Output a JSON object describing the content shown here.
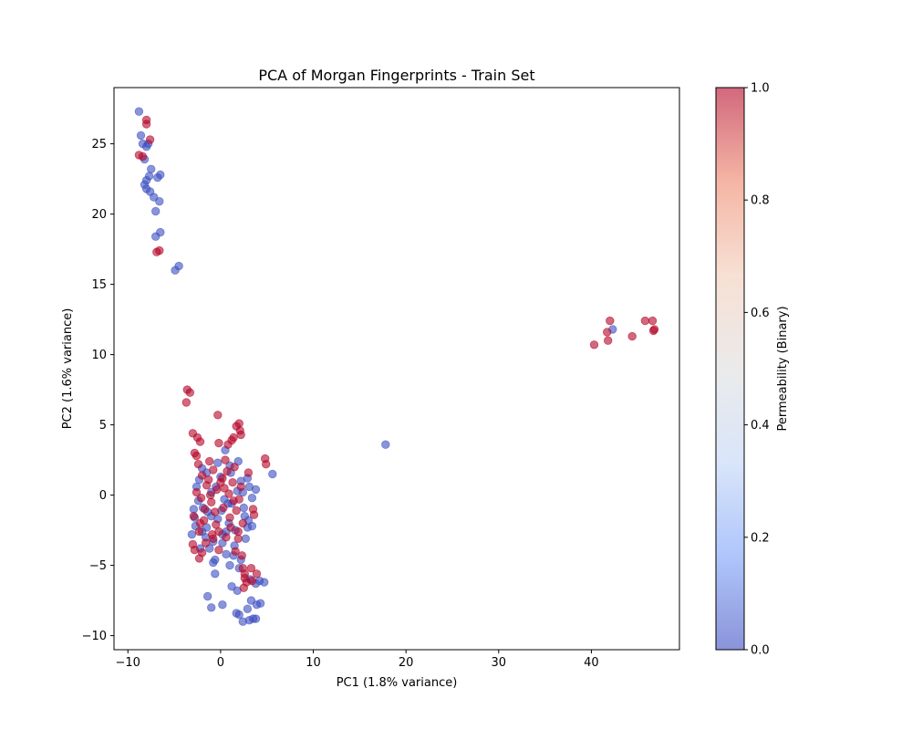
{
  "chart_data": {
    "type": "scatter",
    "title": "PCA of Morgan Fingerprints - Train Set",
    "xlabel": "PC1 (1.8% variance)",
    "ylabel": "PC2 (1.6% variance)",
    "xlim": [
      -11.5,
      49.5
    ],
    "ylim": [
      -11,
      29
    ],
    "xticks": [
      -10,
      0,
      10,
      20,
      30,
      40
    ],
    "yticks": [
      -10,
      -5,
      0,
      5,
      10,
      15,
      20,
      25
    ],
    "grid": false,
    "colormap": "coolwarm",
    "marker_alpha": 0.6,
    "colorbar": {
      "label": "Permeability (Binary)",
      "range": [
        0.0,
        1.0
      ],
      "ticks": [
        "0.0",
        "0.2",
        "0.4",
        "0.6",
        "0.8",
        "1.0"
      ],
      "colors": [
        "#3b4cc0",
        "#7b9ff9",
        "#c0d4f5",
        "#dddddd",
        "#f2cbb7",
        "#ee8468",
        "#b40426"
      ]
    },
    "point_colors": {
      "0": "#3b4cc0",
      "1": "#b40426"
    },
    "series": [
      {
        "value": 0,
        "points": [
          [
            -8.8,
            27.3
          ],
          [
            -8.6,
            25.6
          ],
          [
            -8.4,
            25.0
          ],
          [
            -8.0,
            24.8
          ],
          [
            -7.8,
            25.0
          ],
          [
            -8.2,
            23.9
          ],
          [
            -7.5,
            23.2
          ],
          [
            -8.0,
            22.4
          ],
          [
            -8.2,
            22.1
          ],
          [
            -7.7,
            22.7
          ],
          [
            -6.5,
            22.8
          ],
          [
            -6.8,
            22.6
          ],
          [
            -8.0,
            21.8
          ],
          [
            -7.6,
            21.6
          ],
          [
            -7.2,
            21.2
          ],
          [
            -6.6,
            20.9
          ],
          [
            -7.0,
            20.2
          ],
          [
            -6.5,
            18.7
          ],
          [
            -7.0,
            18.4
          ],
          [
            -4.5,
            16.3
          ],
          [
            -4.9,
            16.0
          ],
          [
            42.3,
            11.8
          ],
          [
            17.8,
            3.6
          ],
          [
            5.6,
            1.5
          ],
          [
            3.8,
            0.4
          ],
          [
            2.9,
            1.2
          ],
          [
            3.1,
            0.6
          ],
          [
            2.4,
            0.2
          ],
          [
            0.5,
            3.2
          ],
          [
            -2.0,
            1.9
          ],
          [
            -1.5,
            1.6
          ],
          [
            0.0,
            1.3
          ],
          [
            1.0,
            2.1
          ],
          [
            2.2,
            1.0
          ],
          [
            1.8,
            0.3
          ],
          [
            -2.6,
            0.6
          ],
          [
            -1.0,
            0.2
          ],
          [
            0.4,
            -0.3
          ],
          [
            1.2,
            -0.6
          ],
          [
            2.5,
            -0.9
          ],
          [
            3.0,
            -1.8
          ],
          [
            3.4,
            -2.2
          ],
          [
            2.7,
            -3.1
          ],
          [
            1.6,
            -2.5
          ],
          [
            0.2,
            -2.8
          ],
          [
            -0.8,
            -3.3
          ],
          [
            -2.0,
            -2.6
          ],
          [
            -2.9,
            -1.0
          ],
          [
            -2.4,
            -0.4
          ],
          [
            -1.4,
            -1.2
          ],
          [
            -0.3,
            -1.7
          ],
          [
            0.9,
            -2.0
          ],
          [
            1.5,
            -3.6
          ],
          [
            0.6,
            -4.2
          ],
          [
            -0.6,
            -4.6
          ],
          [
            -1.6,
            -3.0
          ],
          [
            -2.7,
            -2.2
          ],
          [
            -3.1,
            -2.8
          ],
          [
            -2.2,
            -3.8
          ],
          [
            -1.2,
            -3.8
          ],
          [
            0.2,
            -3.4
          ],
          [
            1.4,
            -4.3
          ],
          [
            2.2,
            -4.6
          ],
          [
            2.0,
            -5.2
          ],
          [
            1.0,
            -5.0
          ],
          [
            -0.8,
            -4.8
          ],
          [
            -0.6,
            -5.6
          ],
          [
            1.2,
            -6.5
          ],
          [
            1.8,
            -6.8
          ],
          [
            3.2,
            -6.0
          ],
          [
            3.8,
            -6.3
          ],
          [
            4.2,
            -6.1
          ],
          [
            4.7,
            -6.2
          ],
          [
            -1.4,
            -7.2
          ],
          [
            0.2,
            -7.8
          ],
          [
            -1.0,
            -8.0
          ],
          [
            1.7,
            -8.4
          ],
          [
            2.0,
            -8.5
          ],
          [
            2.9,
            -8.1
          ],
          [
            3.3,
            -7.5
          ],
          [
            3.9,
            -7.8
          ],
          [
            4.3,
            -7.7
          ],
          [
            2.4,
            -9.0
          ],
          [
            3.1,
            -8.9
          ],
          [
            3.5,
            -8.8
          ],
          [
            3.8,
            -8.8
          ],
          [
            0.8,
            -0.6
          ],
          [
            -1.9,
            -0.9
          ],
          [
            -0.5,
            0.6
          ],
          [
            1.9,
            2.4
          ],
          [
            -2.3,
            1.1
          ],
          [
            -2.8,
            -1.6
          ],
          [
            0.1,
            -1.1
          ],
          [
            -1.5,
            -2.3
          ],
          [
            2.6,
            -1.5
          ],
          [
            1.1,
            1.6
          ],
          [
            -0.3,
            2.3
          ],
          [
            3.4,
            -0.2
          ],
          [
            -1.0,
            -1.5
          ],
          [
            0.6,
            -2.6
          ],
          [
            2.9,
            -2.3
          ]
        ]
      },
      {
        "value": 1,
        "points": [
          [
            -8.0,
            26.7
          ],
          [
            -8.0,
            26.4
          ],
          [
            -7.6,
            25.3
          ],
          [
            -8.8,
            24.2
          ],
          [
            -8.4,
            24.1
          ],
          [
            -6.6,
            17.4
          ],
          [
            -6.9,
            17.3
          ],
          [
            46.6,
            12.4
          ],
          [
            45.8,
            12.4
          ],
          [
            42.0,
            12.4
          ],
          [
            41.7,
            11.6
          ],
          [
            46.8,
            11.8
          ],
          [
            46.7,
            11.7
          ],
          [
            41.8,
            11.0
          ],
          [
            44.4,
            11.3
          ],
          [
            40.3,
            10.7
          ],
          [
            -3.6,
            7.5
          ],
          [
            -3.3,
            7.3
          ],
          [
            -3.7,
            6.6
          ],
          [
            -0.3,
            5.7
          ],
          [
            2.0,
            5.1
          ],
          [
            1.7,
            4.9
          ],
          [
            -3.0,
            4.4
          ],
          [
            2.1,
            4.6
          ],
          [
            -2.5,
            4.1
          ],
          [
            1.4,
            4.1
          ],
          [
            1.2,
            3.9
          ],
          [
            2.2,
            4.3
          ],
          [
            -2.2,
            3.8
          ],
          [
            -0.2,
            3.7
          ],
          [
            0.8,
            3.6
          ],
          [
            -2.8,
            3.0
          ],
          [
            -2.6,
            2.8
          ],
          [
            4.8,
            2.6
          ],
          [
            4.9,
            2.2
          ],
          [
            -2.4,
            2.2
          ],
          [
            -1.2,
            2.4
          ],
          [
            0.5,
            2.5
          ],
          [
            1.5,
            2.0
          ],
          [
            -0.8,
            1.8
          ],
          [
            3.0,
            1.6
          ],
          [
            -2.0,
            1.4
          ],
          [
            0.2,
            1.2
          ],
          [
            1.3,
            0.9
          ],
          [
            -1.5,
            0.7
          ],
          [
            -0.4,
            0.4
          ],
          [
            0.9,
            0.1
          ],
          [
            2.0,
            -0.3
          ],
          [
            -2.1,
            -0.2
          ],
          [
            -1.0,
            -0.5
          ],
          [
            0.3,
            -0.9
          ],
          [
            1.7,
            -1.1
          ],
          [
            3.5,
            -1.0
          ],
          [
            3.6,
            -1.4
          ],
          [
            -2.9,
            -1.5
          ],
          [
            -1.8,
            -1.8
          ],
          [
            -0.5,
            -2.1
          ],
          [
            1.1,
            -2.3
          ],
          [
            2.4,
            -2.0
          ],
          [
            -2.3,
            -2.6
          ],
          [
            -0.9,
            -2.8
          ],
          [
            0.6,
            -3.0
          ],
          [
            1.9,
            -3.1
          ],
          [
            -1.6,
            -3.4
          ],
          [
            -3.0,
            -3.5
          ],
          [
            -2.8,
            -3.9
          ],
          [
            -2.0,
            -4.1
          ],
          [
            -0.2,
            -3.9
          ],
          [
            1.6,
            -4.0
          ],
          [
            2.3,
            -4.3
          ],
          [
            -2.3,
            -4.5
          ],
          [
            2.4,
            -5.2
          ],
          [
            3.3,
            -5.2
          ],
          [
            2.6,
            -5.6
          ],
          [
            3.9,
            -5.6
          ],
          [
            2.6,
            -5.9
          ],
          [
            3.4,
            -6.1
          ],
          [
            2.8,
            -6.2
          ],
          [
            2.5,
            -6.6
          ],
          [
            0.0,
            0.9
          ],
          [
            -1.3,
            1.1
          ],
          [
            1.0,
            -1.6
          ],
          [
            -0.6,
            -1.2
          ],
          [
            2.2,
            0.6
          ],
          [
            -2.6,
            0.2
          ],
          [
            0.4,
            0.5
          ],
          [
            -1.7,
            -1.0
          ],
          [
            1.4,
            -0.4
          ],
          [
            -0.2,
            -2.6
          ],
          [
            -1.1,
            0.0
          ],
          [
            0.7,
            1.7
          ],
          [
            -2.2,
            -2.0
          ],
          [
            1.9,
            -2.6
          ],
          [
            -0.8,
            -3.1
          ]
        ]
      }
    ]
  }
}
